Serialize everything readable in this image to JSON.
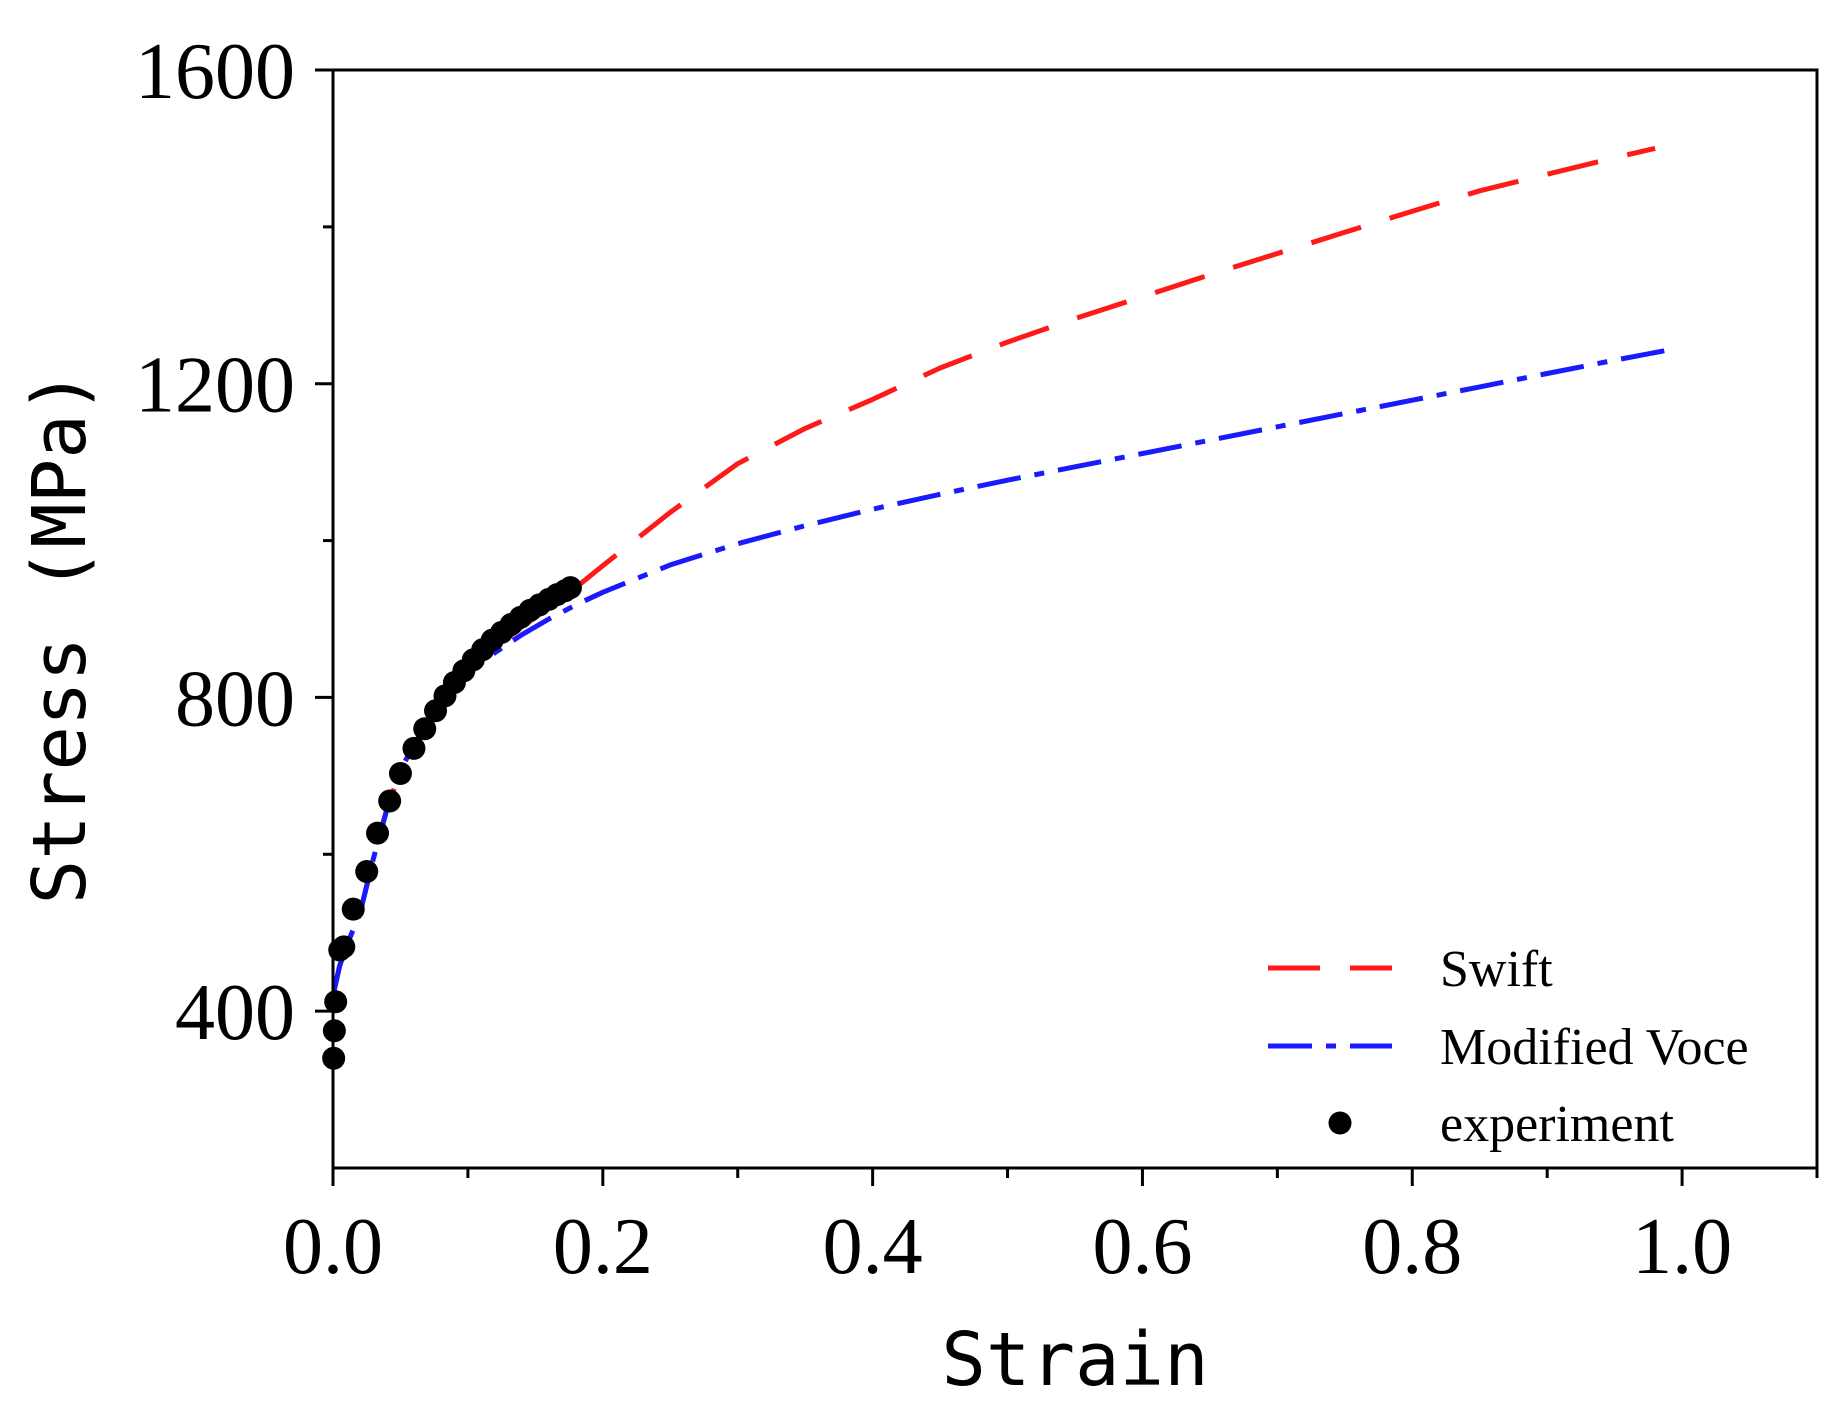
{
  "chart_data": {
    "type": "line",
    "title": "",
    "xlabel": "Strain",
    "ylabel": "Stress (MPa)",
    "xlim": [
      0,
      1.1
    ],
    "ylim": [
      200,
      1600
    ],
    "x_ticks": [
      0.0,
      0.2,
      0.4,
      0.6,
      0.8,
      1.0
    ],
    "x_tick_labels": [
      "0.0",
      "0.2",
      "0.4",
      "0.6",
      "0.8",
      "1.0"
    ],
    "x_minor_ticks": [
      0.1,
      0.3,
      0.5,
      0.7,
      0.9,
      1.1
    ],
    "y_ticks": [
      400,
      800,
      1200,
      1600
    ],
    "y_tick_labels": [
      "400",
      "800",
      "1200",
      "1600"
    ],
    "y_minor_ticks": [
      600,
      1000,
      1400
    ],
    "grid": false,
    "legend_position": "bottom-right",
    "series": [
      {
        "name": "Swift",
        "style": "dashed",
        "color": "#ff1a1a",
        "x": [
          0.0,
          0.005,
          0.01,
          0.02,
          0.03,
          0.04,
          0.05,
          0.06,
          0.07,
          0.08,
          0.09,
          0.1,
          0.12,
          0.14,
          0.16,
          0.18,
          0.2,
          0.25,
          0.3,
          0.35,
          0.4,
          0.45,
          0.5,
          0.55,
          0.6,
          0.65,
          0.7,
          0.75,
          0.8,
          0.85,
          0.9,
          0.95,
          0.98
        ],
        "y": [
          420,
          458,
          483,
          525,
          595,
          658,
          707,
          740,
          767,
          791,
          812,
          832,
          862,
          890,
          914,
          940,
          968,
          1036,
          1098,
          1143,
          1180,
          1220,
          1253,
          1283,
          1311,
          1339,
          1366,
          1393,
          1420,
          1446,
          1467,
          1488,
          1500
        ]
      },
      {
        "name": "Modified Voce",
        "style": "dash-dot",
        "color": "#1a1aff",
        "x": [
          0.0,
          0.005,
          0.01,
          0.02,
          0.03,
          0.04,
          0.05,
          0.06,
          0.07,
          0.08,
          0.09,
          0.1,
          0.12,
          0.14,
          0.16,
          0.18,
          0.2,
          0.25,
          0.3,
          0.35,
          0.4,
          0.45,
          0.5,
          0.55,
          0.6,
          0.65,
          0.7,
          0.75,
          0.8,
          0.85,
          0.9,
          0.95,
          0.99
        ],
        "y": [
          420,
          458,
          483,
          525,
          595,
          658,
          707,
          740,
          767,
          791,
          812,
          830,
          857,
          880,
          900,
          918,
          934,
          969,
          996,
          1019,
          1040,
          1059,
          1077,
          1094,
          1111,
          1128,
          1145,
          1162,
          1179,
          1196,
          1213,
          1230,
          1243
        ]
      },
      {
        "name": "experiment",
        "style": "markers",
        "color": "#000000",
        "x": [
          0.0005,
          0.001,
          0.002,
          0.005,
          0.008,
          0.015,
          0.025,
          0.033,
          0.042,
          0.05,
          0.06,
          0.068,
          0.076,
          0.083,
          0.09,
          0.097,
          0.104,
          0.111,
          0.118,
          0.125,
          0.132,
          0.139,
          0.146,
          0.153,
          0.16,
          0.166,
          0.172,
          0.176
        ],
        "y": [
          340,
          375,
          412,
          478,
          482,
          530,
          578,
          627,
          668,
          703,
          735,
          760,
          783,
          802,
          819,
          834,
          848,
          861,
          873,
          883,
          893,
          902,
          911,
          918,
          925,
          931,
          936,
          940
        ]
      }
    ]
  }
}
